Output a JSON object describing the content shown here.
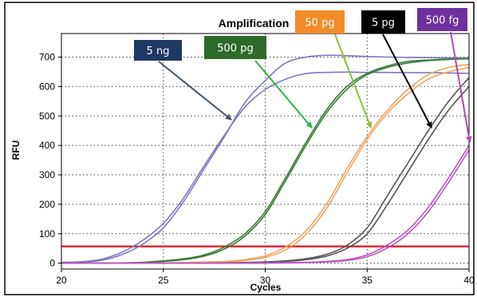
{
  "chart_data": {
    "type": "line",
    "title": "Amplification",
    "xlabel": "Cycles",
    "ylabel": "RFU",
    "xlim": [
      20,
      40
    ],
    "ylim": [
      -20,
      780
    ],
    "xticks": [
      20,
      25,
      30,
      35,
      40
    ],
    "yticks": [
      0,
      100,
      200,
      300,
      400,
      500,
      600,
      700
    ],
    "grid": true,
    "threshold": 57,
    "threshold_color": "#e8141b",
    "series": [
      {
        "name": "5 ng",
        "color": "#7b78c2",
        "replicates": [
          {
            "x": [
              20,
              21,
              22,
              23,
              24,
              25,
              26,
              27,
              28,
              29,
              30,
              31,
              32,
              33,
              34,
              35,
              36,
              37,
              38,
              39,
              40
            ],
            "y": [
              3,
              5,
              14,
              38,
              78,
              135,
              222,
              330,
              435,
              530,
              590,
              625,
              644,
              648,
              649,
              648,
              648,
              647,
              647,
              646,
              645
            ]
          },
          {
            "x": [
              20,
              21,
              22,
              23,
              24,
              25,
              26,
              27,
              28,
              29,
              30,
              31,
              32,
              33,
              34,
              35,
              36,
              37,
              38,
              39,
              40
            ],
            "y": [
              2,
              4,
              10,
              30,
              65,
              120,
              210,
              320,
              430,
              545,
              620,
              680,
              700,
              706,
              705,
              702,
              700,
              699,
              698,
              697,
              696
            ]
          }
        ]
      },
      {
        "name": "500 pg",
        "color": "#3d7a3a",
        "replicates": [
          {
            "x": [
              20,
              22,
              24,
              25,
              26,
              27,
              28,
              29,
              30,
              31,
              32,
              33,
              34,
              35,
              36,
              37,
              38,
              39,
              40
            ],
            "y": [
              0,
              0,
              3,
              8,
              15,
              28,
              55,
              100,
              175,
              290,
              410,
              520,
              600,
              645,
              670,
              685,
              690,
              693,
              695
            ]
          },
          {
            "x": [
              20,
              22,
              24,
              25,
              26,
              27,
              28,
              29,
              30,
              31,
              32,
              33,
              34,
              35,
              36,
              37,
              38,
              39,
              40
            ],
            "y": [
              0,
              0,
              2,
              6,
              12,
              24,
              48,
              92,
              165,
              280,
              400,
              510,
              590,
              640,
              665,
              680,
              688,
              692,
              694
            ]
          }
        ]
      },
      {
        "name": "50 pg",
        "color": "#f4a460",
        "replicates": [
          {
            "x": [
              20,
              24,
              26,
              28,
              29,
              30,
              31,
              32,
              33,
              34,
              35,
              36,
              37,
              38,
              39,
              40
            ],
            "y": [
              0,
              0,
              2,
              6,
              12,
              25,
              55,
              110,
              200,
              320,
              430,
              520,
              590,
              640,
              665,
              675
            ]
          },
          {
            "x": [
              20,
              24,
              26,
              28,
              29,
              30,
              31,
              32,
              33,
              34,
              35,
              36,
              37,
              38,
              39,
              40
            ],
            "y": [
              0,
              0,
              1,
              4,
              9,
              20,
              45,
              98,
              185,
              305,
              420,
              510,
              575,
              625,
              650,
              665
            ]
          }
        ]
      },
      {
        "name": "5 pg",
        "color": "#555555",
        "replicates": [
          {
            "x": [
              20,
              26,
              28,
              30,
              31,
              32,
              33,
              34,
              35,
              36,
              37,
              38,
              39,
              40
            ],
            "y": [
              0,
              0,
              1,
              4,
              8,
              15,
              30,
              60,
              120,
              230,
              340,
              450,
              550,
              630
            ]
          },
          {
            "x": [
              20,
              26,
              28,
              30,
              31,
              32,
              33,
              34,
              35,
              36,
              37,
              38,
              39,
              40
            ],
            "y": [
              0,
              0,
              0,
              3,
              6,
              12,
              24,
              50,
              100,
              200,
              310,
              420,
              520,
              600
            ]
          }
        ]
      },
      {
        "name": "500 fg",
        "color": "#c054c0",
        "replicates": [
          {
            "x": [
              20,
              28,
              30,
              32,
              33,
              34,
              35,
              36,
              37,
              38,
              39,
              40
            ],
            "y": [
              0,
              0,
              1,
              3,
              6,
              12,
              28,
              62,
              112,
              190,
              290,
              400
            ]
          },
          {
            "x": [
              20,
              28,
              30,
              32,
              33,
              34,
              35,
              36,
              37,
              38,
              39,
              40
            ],
            "y": [
              0,
              0,
              0,
              2,
              4,
              9,
              22,
              52,
              100,
              175,
              275,
              385
            ]
          }
        ]
      }
    ]
  },
  "labels": [
    {
      "text": "5 ng",
      "bg": "#1f3864",
      "series": "5 ng"
    },
    {
      "text": "500 pg",
      "bg": "#2e6b2a",
      "series": "500 pg"
    },
    {
      "text": "50 pg",
      "bg": "#f28c28",
      "series": "50 pg"
    },
    {
      "text": "5 pg",
      "bg": "#000000",
      "series": "5 pg"
    },
    {
      "text": "500 fg",
      "bg": "#7030a0",
      "series": "500 fg"
    }
  ],
  "colors": {
    "arrow_5ng": "#44546a",
    "arrow_500pg": "#2ab44a",
    "arrow_50pg": "#8cbf3f",
    "arrow_5pg": "#000000",
    "arrow_500fg": "#b04ab0"
  }
}
